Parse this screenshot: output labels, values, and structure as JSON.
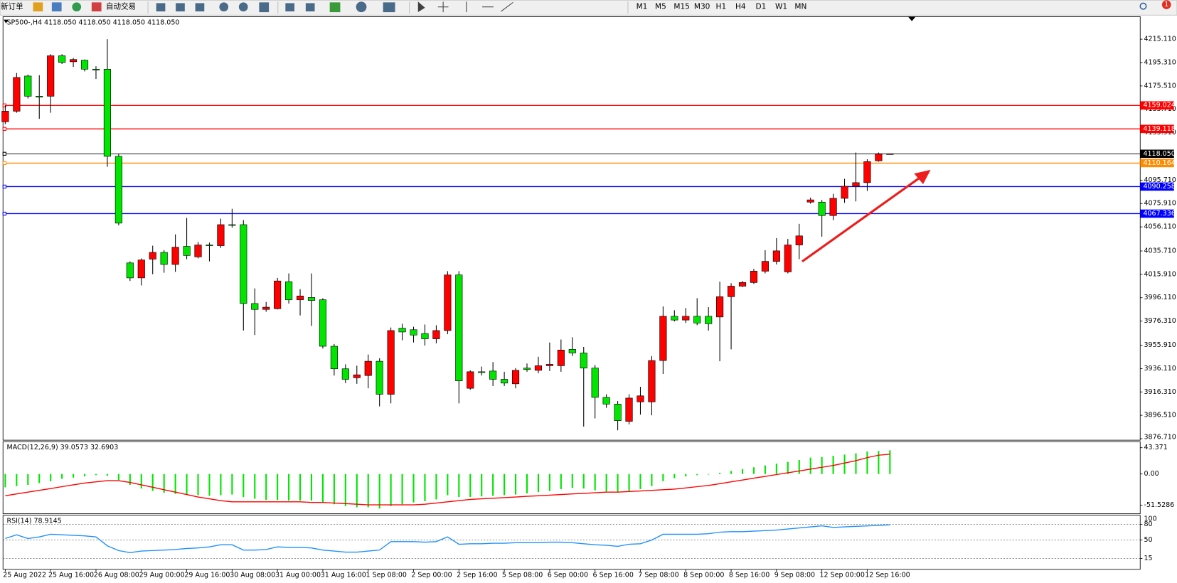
{
  "toolbar": {
    "new_order": "新订单",
    "auto_trading": "自动交易",
    "timeframes": [
      "M1",
      "M5",
      "M15",
      "M30",
      "H1",
      "H4",
      "D1",
      "W1",
      "MN"
    ],
    "alerts": "1"
  },
  "chart_data": [
    {
      "type": "candlestick",
      "title": "SP500-,H4  4118.050 4118.050 4118.050 4118.050",
      "categories": [
        "25 Aug 2022",
        null,
        null,
        null,
        "25 Aug 16:00",
        null,
        null,
        null,
        "26 Aug 08:00",
        null,
        null,
        null,
        "29 Aug 00:00",
        null,
        null,
        null,
        "29 Aug 16:00",
        null,
        null,
        null,
        "30 Aug 08:00",
        null,
        null,
        null,
        "31 Aug 00:00",
        null,
        null,
        null,
        "31 Aug 16:00",
        null,
        null,
        null,
        "1 Sep 08:00",
        null,
        null,
        null,
        "2 Sep 00:00",
        null,
        null,
        null,
        "2 Sep 16:00",
        null,
        null,
        null,
        "5 Sep 08:00",
        null,
        null,
        null,
        "6 Sep 00:00",
        null,
        null,
        null,
        "6 Sep 16:00",
        null,
        null,
        null,
        "7 Sep 08:00",
        null,
        null,
        null,
        "8 Sep 00:00",
        null,
        null,
        null,
        "8 Sep 16:00",
        null,
        null,
        null,
        "9 Sep 08:00",
        null,
        null,
        null,
        "12 Sep 00:00",
        null,
        null,
        null,
        "12 Sep 16:00",
        null,
        null
      ],
      "open": [
        4145.2,
        4154.1,
        4183.9,
        4166.8,
        4166.8,
        4201.1,
        4196.0,
        4197.3,
        4189.7,
        4189.7,
        4115.9,
        4025.6,
        4012.9,
        4028.8,
        4034.5,
        4024.3,
        4039.6,
        4030.7,
        4040.8,
        4040.2,
        4058.0,
        4058.0,
        3991.2,
        3986.2,
        3986.8,
        4009.7,
        3994.4,
        3996.3,
        3994.4,
        3955.0,
        3935.9,
        3928.3,
        3930.2,
        3942.3,
        3914.3,
        3970.3,
        3969.0,
        3965.8,
        3961.3,
        3968.3,
        4015.4,
        3919.4,
        3933.4,
        3934.0,
        3927.0,
        3923.2,
        3936.5,
        3934.6,
        3938.5,
        3938.5,
        3952.4,
        3949.3,
        3936.5,
        3911.7,
        3906.0,
        3891.4,
        3907.9,
        3907.9,
        3942.9,
        3980.4,
        3977.2,
        3980.4,
        3980.4,
        3979.8,
        3997.0,
        4005.9,
        4009.0,
        4018.6,
        4026.9,
        4018.0,
        4040.8,
        4077.1,
        4077.1,
        4065.7,
        4080.3,
        4090.5,
        4093.6,
        4112.1,
        4118.05
      ],
      "high": [
        4159.1,
        4186.5,
        4185.2,
        4184.6,
        4202.4,
        4202.4,
        4199.2,
        4197.9,
        4192.2,
        4215.1,
        4117.8,
        4026.9,
        4029.4,
        4040.2,
        4036.4,
        4049.8,
        4063.7,
        4043.4,
        4042.8,
        4063.1,
        4071.4,
        4061.8,
        4004.0,
        3992.5,
        4012.9,
        4016.7,
        4003.3,
        4016.7,
        3995.7,
        3956.9,
        3939.7,
        3938.5,
        3948.0,
        3944.8,
        3970.9,
        3974.1,
        3971.5,
        3973.4,
        3972.8,
        4018.6,
        4018.6,
        3934.6,
        3937.8,
        3941.6,
        3933.4,
        3936.5,
        3940.4,
        3946.1,
        3958.2,
        3960.7,
        3962.6,
        3954.4,
        3939.1,
        3914.3,
        3908.6,
        3914.3,
        3920.6,
        3946.7,
        3988.7,
        3985.5,
        3987.4,
        3995.7,
        3988.1,
        4009.7,
        4008.4,
        4010.3,
        4020.5,
        4036.4,
        4046.6,
        4045.9,
        4058.7,
        4080.9,
        4079.0,
        4084.1,
        4096.8,
        4119.1,
        4113.4,
        4119.1,
        4118.05
      ],
      "low": [
        4143.2,
        4152.8,
        4164.9,
        4147.7,
        4152.8,
        4194.1,
        4191.6,
        4187.8,
        4181.4,
        4107.0,
        4057.4,
        4010.3,
        4006.5,
        4016.0,
        4017.3,
        4018.0,
        4028.8,
        4029.4,
        4026.9,
        4038.3,
        4055.5,
        3968.3,
        3964.5,
        3984.2,
        3986.2,
        3991.2,
        3981.1,
        3972.2,
        3953.1,
        3930.2,
        3923.8,
        3923.2,
        3919.4,
        3904.1,
        3906.6,
        3960.1,
        3958.2,
        3955.6,
        3957.5,
        3965.2,
        3906.6,
        3918.1,
        3930.2,
        3921.3,
        3921.3,
        3919.4,
        3933.4,
        3932.1,
        3934.0,
        3933.4,
        3946.7,
        3886.9,
        3893.9,
        3902.8,
        3883.8,
        3888.8,
        3897.1,
        3896.5,
        3931.5,
        3976.0,
        3974.7,
        3972.8,
        3968.3,
        3942.3,
        3952.4,
        4005.2,
        4007.8,
        4016.7,
        4024.3,
        4016.7,
        4028.8,
        4075.8,
        4047.8,
        4061.8,
        4076.5,
        4077.7,
        4086.6,
        4111.4,
        4118.05
      ],
      "close": [
        4154.1,
        4182.7,
        4166.8,
        4166.1,
        4201.1,
        4195.4,
        4197.9,
        4189.7,
        4189.0,
        4115.9,
        4059.3,
        4012.9,
        4028.1,
        4034.5,
        4024.3,
        4038.9,
        4031.9,
        4040.8,
        4040.2,
        4058.0,
        4057.4,
        3991.2,
        3986.2,
        3988.1,
        4010.3,
        3994.4,
        3997.6,
        3993.8,
        3955.0,
        3935.9,
        3927.0,
        3930.8,
        3942.3,
        3914.3,
        3968.3,
        3967.1,
        3964.5,
        3961.3,
        3968.3,
        4015.4,
        3925.7,
        3933.4,
        3932.7,
        3927.0,
        3923.8,
        3934.6,
        3935.3,
        3938.5,
        3939.7,
        3951.8,
        3949.3,
        3936.5,
        3911.7,
        3906.0,
        3892.0,
        3911.1,
        3913.0,
        3942.9,
        3980.4,
        3977.2,
        3980.4,
        3974.7,
        3974.1,
        3997.0,
        4005.9,
        4009.0,
        4018.6,
        4026.9,
        4035.8,
        4040.8,
        4048.5,
        4079.0,
        4065.7,
        4080.3,
        4090.5,
        4093.6,
        4111.4,
        4117.8,
        4118.05
      ],
      "up_color": "#ff0000",
      "down_color": "#00e600",
      "ylim": [
        3875.44,
        4234.19
      ],
      "yticks": [
        {
          "value": 4215.11,
          "label": "4215.110"
        },
        {
          "value": 4195.31,
          "label": "4195.310"
        },
        {
          "value": 4175.51,
          "label": "4175.510"
        },
        {
          "value": 4155.71,
          "label": "4155.710"
        },
        {
          "value": 4135.91,
          "label": "4135.910"
        },
        {
          "value": 4095.71,
          "label": "4095.710"
        },
        {
          "value": 4075.91,
          "label": "4075.910"
        },
        {
          "value": 4056.11,
          "label": "4056.110"
        },
        {
          "value": 4035.71,
          "label": "4035.710"
        },
        {
          "value": 4015.91,
          "label": "4015.910"
        },
        {
          "value": 3996.11,
          "label": "3996.110"
        },
        {
          "value": 3976.31,
          "label": "3976.310"
        },
        {
          "value": 3955.91,
          "label": "3955.910"
        },
        {
          "value": 3936.11,
          "label": "3936.110"
        },
        {
          "value": 3916.31,
          "label": "3916.310"
        },
        {
          "value": 3896.51,
          "label": "3896.510"
        },
        {
          "value": 3876.71,
          "label": "3876.710"
        }
      ],
      "grid": false,
      "levels": [
        {
          "value": 4159.024,
          "color": "#ff0000"
        },
        {
          "value": 4139.118,
          "color": "#ff0000"
        },
        {
          "value": 4118.05,
          "label": "4118.050",
          "color": "#000000"
        },
        {
          "value": 4110.164,
          "color": "#ff8c00"
        },
        {
          "value": 4090.258,
          "color": "#0000ff"
        },
        {
          "value": 4067.336,
          "color": "#0000ff"
        }
      ]
    },
    {
      "type": "macd",
      "title": "MACD(12,26,9) 39.0573 32.6903",
      "series": [
        {
          "kind": "bar",
          "color": "#00e600",
          "values": [
            -22,
            -20,
            -18,
            -15,
            -12,
            -8,
            -6,
            -4,
            -2,
            -3,
            -10,
            -18,
            -24,
            -28,
            -31,
            -33,
            -34,
            -35,
            -36,
            -35,
            -34,
            -38,
            -41,
            -43,
            -43,
            -44,
            -44,
            -44,
            -47,
            -50,
            -53,
            -55,
            -55,
            -57,
            -53,
            -50,
            -47,
            -45,
            -42,
            -35,
            -38,
            -38,
            -37,
            -36,
            -35,
            -34,
            -32,
            -30,
            -28,
            -25,
            -23,
            -24,
            -27,
            -29,
            -30,
            -28,
            -25,
            -20,
            -12,
            -7,
            -4,
            -2,
            -1,
            2,
            5,
            8,
            11,
            14,
            17,
            20,
            23,
            27,
            28,
            30,
            32,
            34,
            37,
            38,
            39.0573
          ]
        },
        {
          "kind": "line",
          "color": "#ff0000",
          "values": [
            -36,
            -33,
            -30,
            -27,
            -24,
            -21,
            -18,
            -15,
            -13,
            -11,
            -11,
            -14,
            -18,
            -22,
            -26,
            -30,
            -34,
            -38,
            -41,
            -44,
            -46,
            -46,
            -46,
            -46,
            -46,
            -46,
            -46,
            -47,
            -47,
            -48,
            -49,
            -50,
            -51,
            -51,
            -51,
            -51,
            -51,
            -50,
            -48,
            -46,
            -44,
            -42,
            -41,
            -40,
            -39,
            -38,
            -37,
            -36,
            -35,
            -34,
            -33,
            -32,
            -31,
            -30,
            -30,
            -29,
            -28,
            -27,
            -26,
            -25,
            -23,
            -21,
            -19,
            -16,
            -13,
            -10,
            -7,
            -4,
            -1,
            2,
            5,
            8,
            11,
            14,
            18,
            22,
            27,
            31,
            32.6903
          ]
        }
      ],
      "ylim": [
        -65.7,
        53.3
      ],
      "yticks": [
        43.371,
        {
          "value": 0,
          "label": "0.00"
        },
        -51.5286
      ],
      "grid": false
    },
    {
      "type": "line",
      "title": "RSI(14) 78.9145",
      "series": [
        {
          "color": "#1e90ff",
          "values": [
            53,
            60,
            53,
            56,
            61,
            60,
            59,
            58,
            56,
            39,
            30,
            26,
            29,
            30,
            31,
            32,
            34,
            35,
            37,
            41,
            41,
            31,
            31,
            32,
            37,
            36,
            36,
            35,
            31,
            29,
            27,
            27,
            29,
            31,
            47,
            47,
            47,
            46,
            47,
            56,
            42,
            43,
            43,
            44,
            44,
            45,
            45,
            45,
            46,
            46,
            45,
            43,
            41,
            40,
            38,
            42,
            43,
            50,
            61,
            61,
            61,
            61,
            62,
            65,
            66,
            66,
            67,
            68,
            69,
            71,
            73,
            75,
            77,
            74,
            75,
            76,
            77,
            78,
            78.9145
          ]
        }
      ],
      "ylim": [
        -5.7,
        97.1
      ],
      "yticks": [
        100,
        80,
        50,
        15
      ],
      "grid": true
    }
  ]
}
